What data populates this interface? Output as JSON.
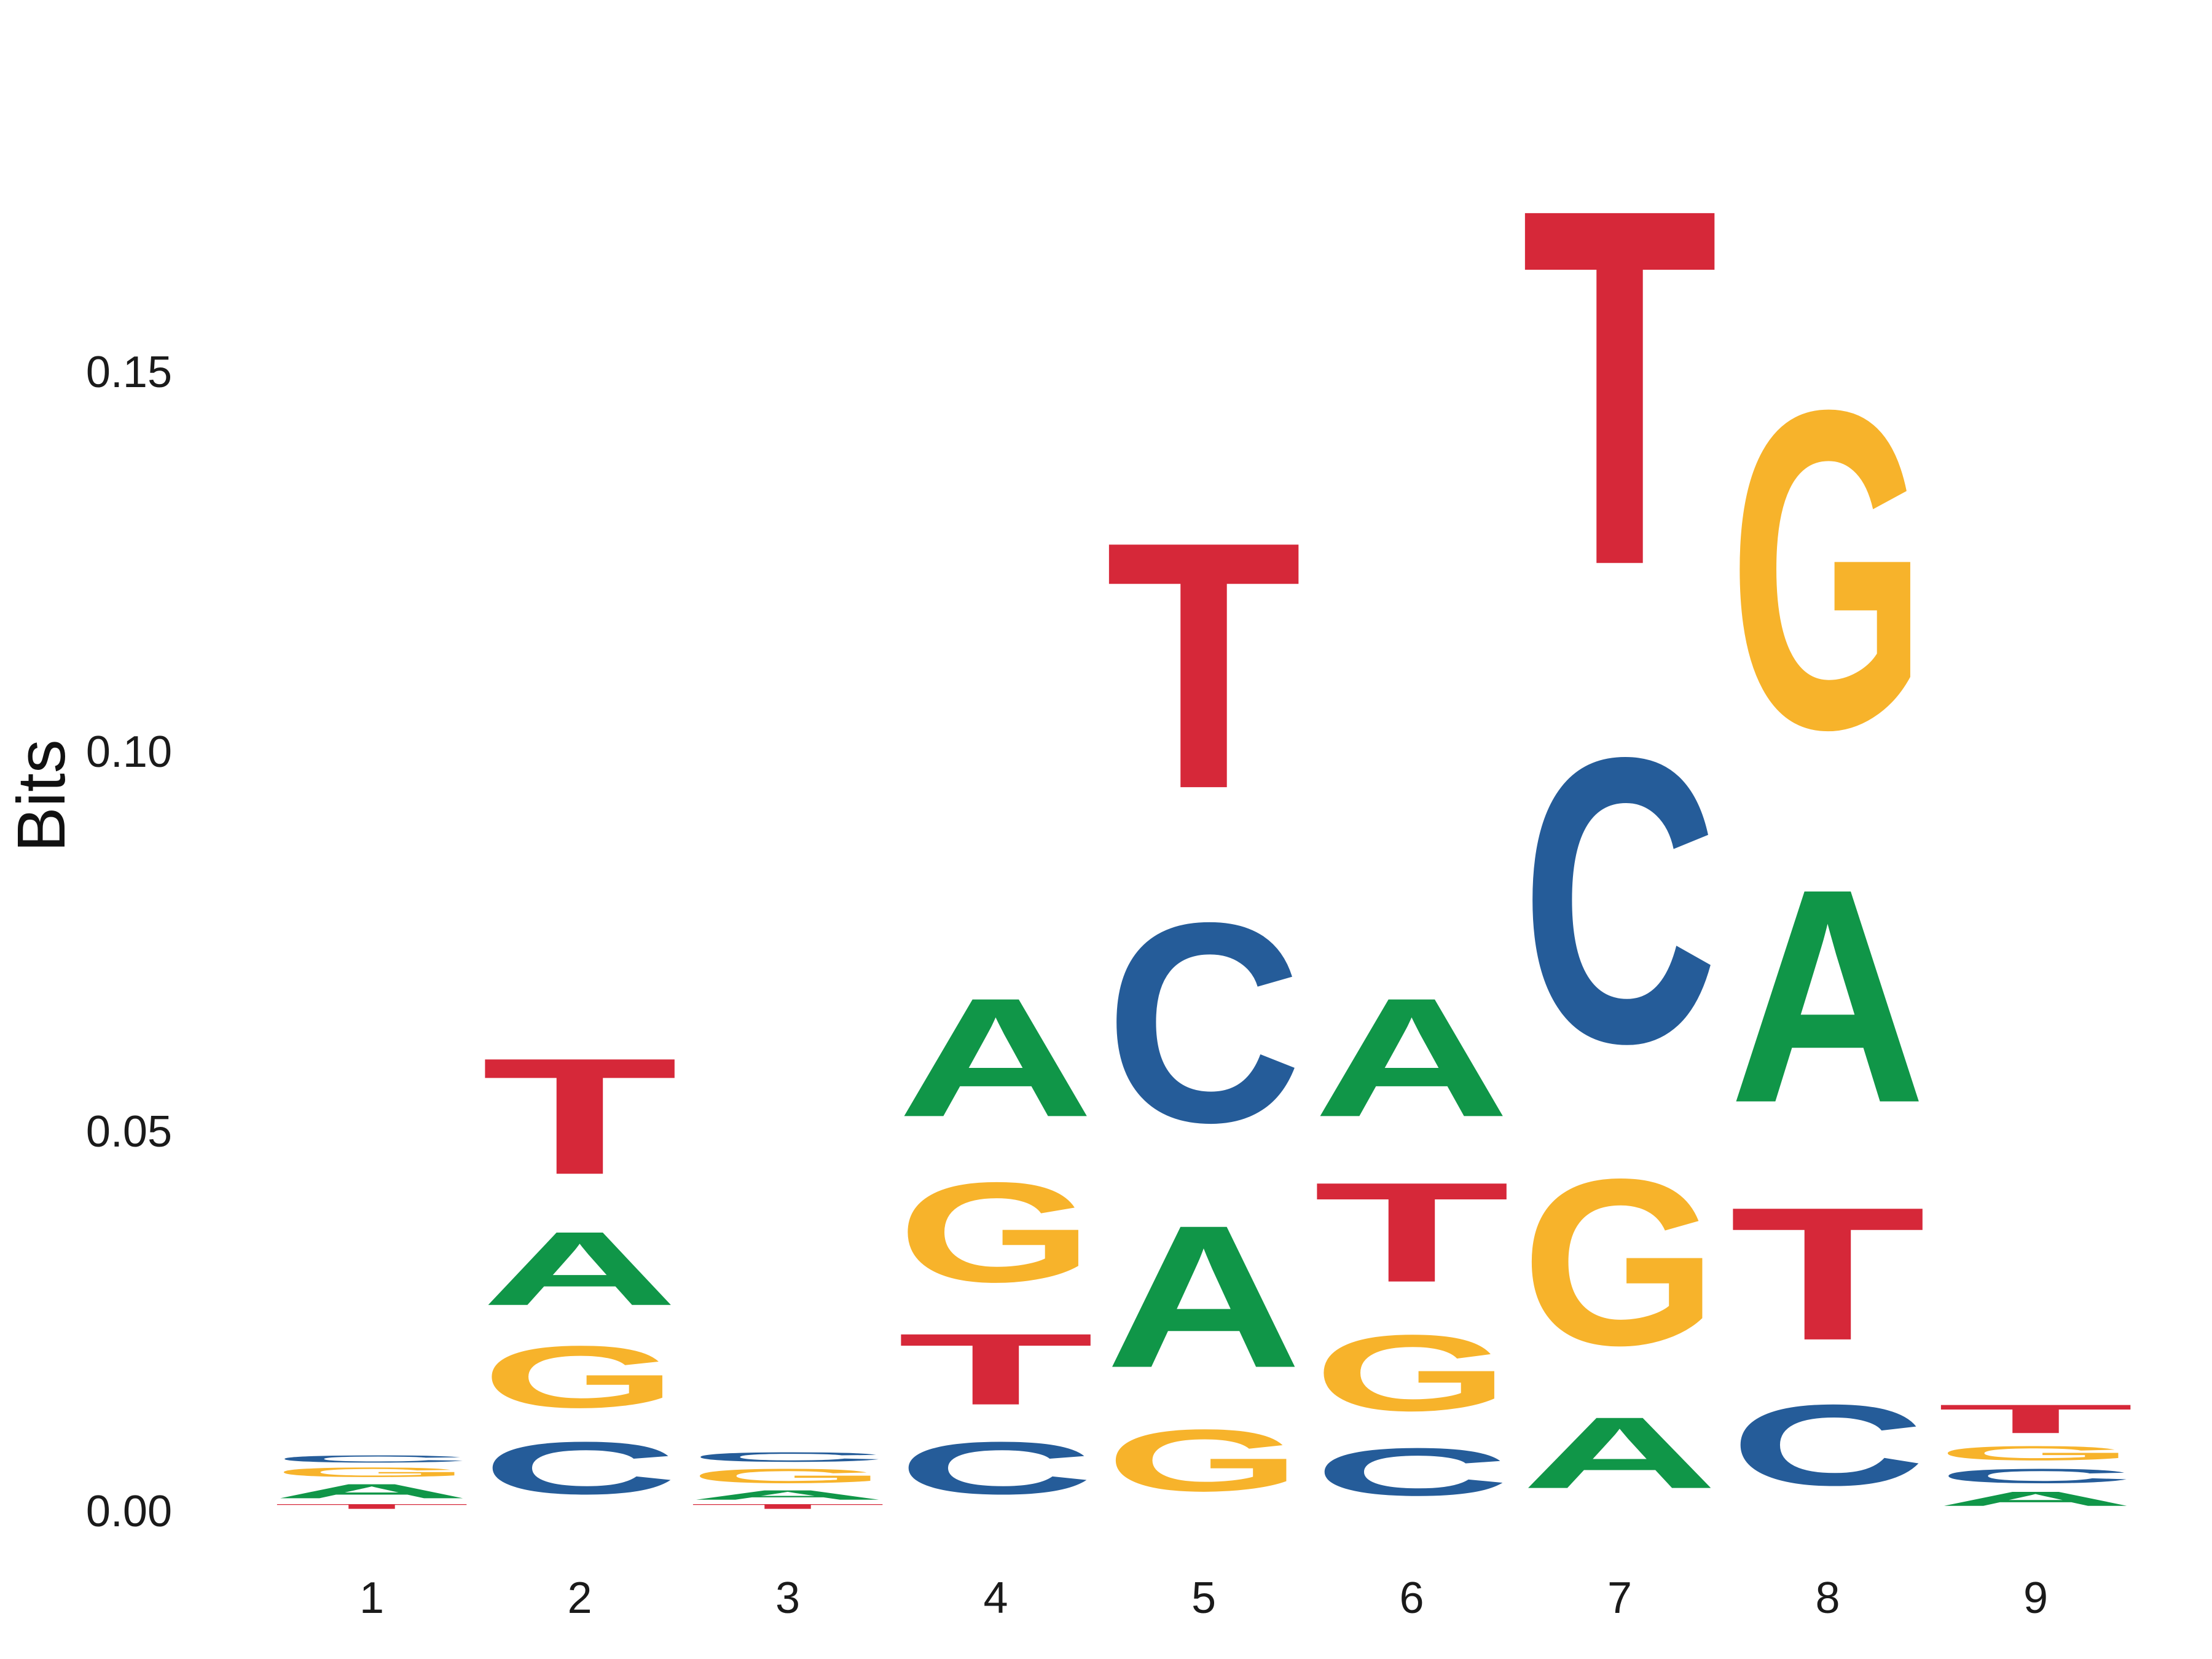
{
  "chart_data": {
    "type": "sequence_logo",
    "title": "",
    "xlabel": "",
    "ylabel": "Bits",
    "ylim": [
      0,
      0.19
    ],
    "yticks": [
      0.0,
      0.05,
      0.1,
      0.15
    ],
    "ytick_labels": [
      "0.00",
      "0.05",
      "0.10",
      "0.15"
    ],
    "grid": false,
    "colors": {
      "A": "#109648",
      "C": "#255c99",
      "G": "#f7b32b",
      "T": "#d62839"
    },
    "positions": [
      {
        "label": "1",
        "stack": [
          {
            "letter": "T",
            "height": 0.001
          },
          {
            "letter": "A",
            "height": 0.003
          },
          {
            "letter": "G",
            "height": 0.002
          },
          {
            "letter": "C",
            "height": 0.0015
          }
        ]
      },
      {
        "label": "2",
        "stack": [
          {
            "letter": "C",
            "height": 0.011
          },
          {
            "letter": "G",
            "height": 0.013
          },
          {
            "letter": "A",
            "height": 0.0155
          },
          {
            "letter": "T",
            "height": 0.0245
          }
        ]
      },
      {
        "label": "3",
        "stack": [
          {
            "letter": "T",
            "height": 0.001
          },
          {
            "letter": "A",
            "height": 0.002
          },
          {
            "letter": "G",
            "height": 0.003
          },
          {
            "letter": "C",
            "height": 0.002
          }
        ]
      },
      {
        "label": "4",
        "stack": [
          {
            "letter": "C",
            "height": 0.011
          },
          {
            "letter": "T",
            "height": 0.015
          },
          {
            "letter": "G",
            "height": 0.021
          },
          {
            "letter": "A",
            "height": 0.025
          }
        ]
      },
      {
        "label": "5",
        "stack": [
          {
            "letter": "G",
            "height": 0.013
          },
          {
            "letter": "A",
            "height": 0.03
          },
          {
            "letter": "C",
            "height": 0.042
          },
          {
            "letter": "T",
            "height": 0.052
          }
        ]
      },
      {
        "label": "6",
        "stack": [
          {
            "letter": "C",
            "height": 0.01
          },
          {
            "letter": "G",
            "height": 0.016
          },
          {
            "letter": "T",
            "height": 0.021
          },
          {
            "letter": "A",
            "height": 0.025
          }
        ]
      },
      {
        "label": "7",
        "stack": [
          {
            "letter": "A",
            "height": 0.015
          },
          {
            "letter": "G",
            "height": 0.035
          },
          {
            "letter": "C",
            "height": 0.06
          },
          {
            "letter": "T",
            "height": 0.075
          }
        ]
      },
      {
        "label": "8",
        "stack": [
          {
            "letter": "C",
            "height": 0.017
          },
          {
            "letter": "T",
            "height": 0.028
          },
          {
            "letter": "A",
            "height": 0.045
          },
          {
            "letter": "G",
            "height": 0.067
          }
        ]
      },
      {
        "label": "9",
        "stack": [
          {
            "letter": "A",
            "height": 0.003
          },
          {
            "letter": "C",
            "height": 0.003
          },
          {
            "letter": "G",
            "height": 0.003
          },
          {
            "letter": "T",
            "height": 0.006
          }
        ]
      }
    ]
  }
}
